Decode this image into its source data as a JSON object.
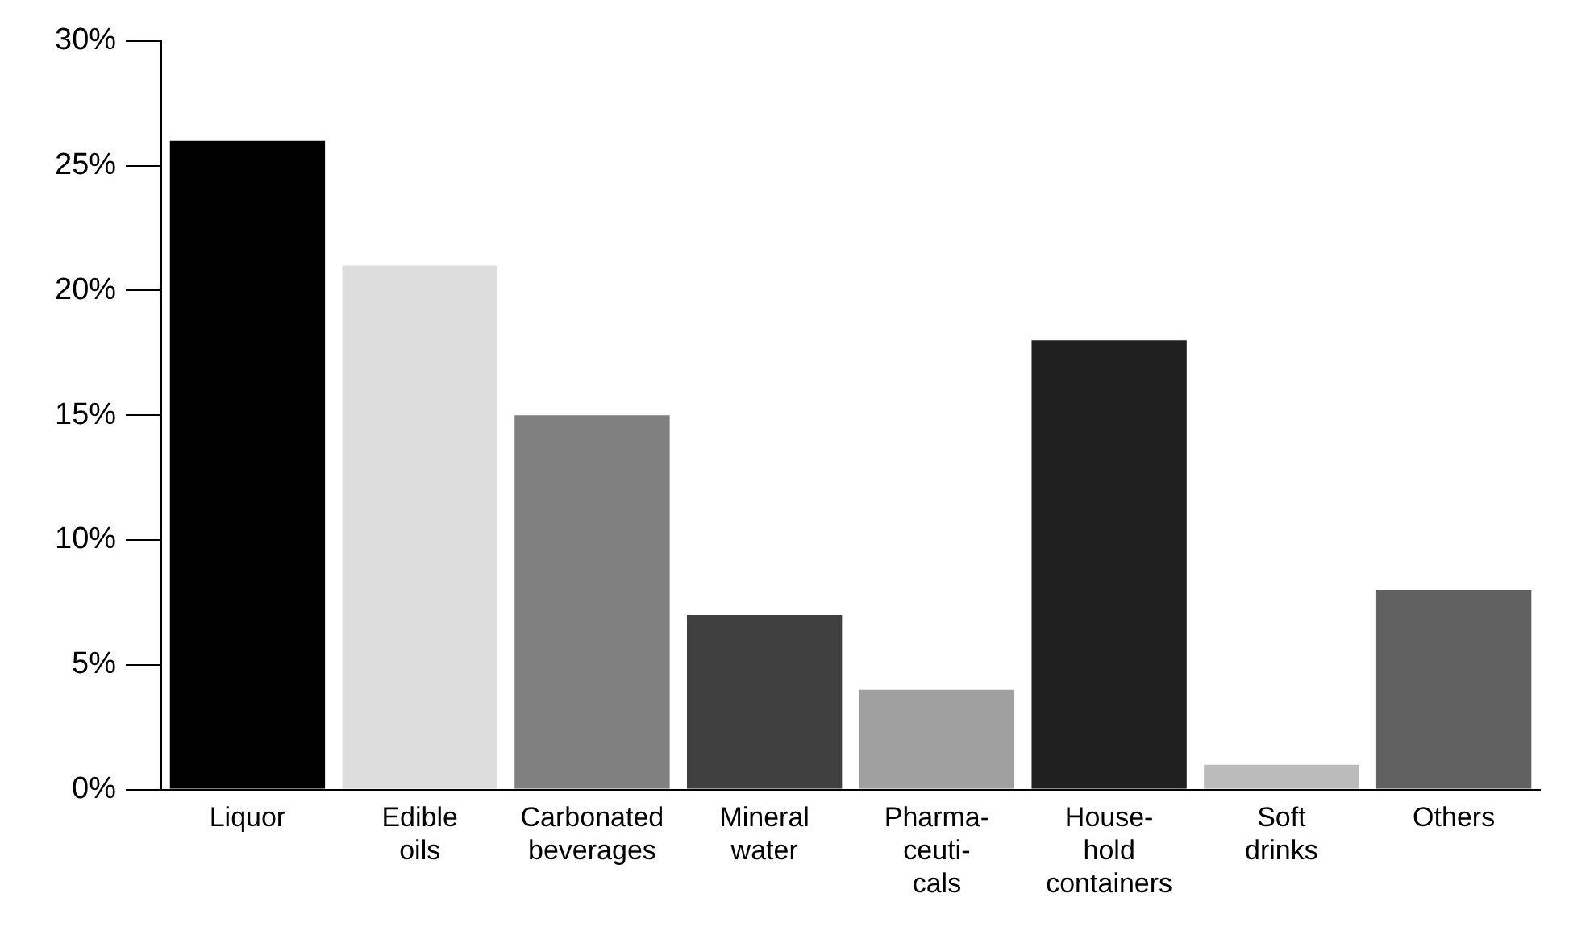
{
  "chart_data": {
    "type": "bar",
    "categories": [
      "Liquor",
      "Edible\noils",
      "Carbonated\nbeverages",
      "Mineral\nwater",
      "Pharma-\nceuti-\ncals",
      "House-\nhold\ncontainers",
      "Soft\ndrinks",
      "Others"
    ],
    "values": [
      26,
      21,
      15,
      7,
      4,
      18,
      1,
      8
    ],
    "colors": [
      "#000000",
      "#dddddd",
      "#808080",
      "#404040",
      "#a0a0a0",
      "#202020",
      "#bbbbbb",
      "#606060"
    ],
    "ylim": [
      0,
      30
    ],
    "yticks": [
      {
        "value": 0,
        "label": "0%"
      },
      {
        "value": 5,
        "label": "5%"
      },
      {
        "value": 10,
        "label": "10%"
      },
      {
        "value": 15,
        "label": "15%"
      },
      {
        "value": 20,
        "label": "20%"
      },
      {
        "value": 25,
        "label": "25%"
      },
      {
        "value": 30,
        "label": "30%"
      }
    ],
    "grid": false,
    "legend": false
  }
}
